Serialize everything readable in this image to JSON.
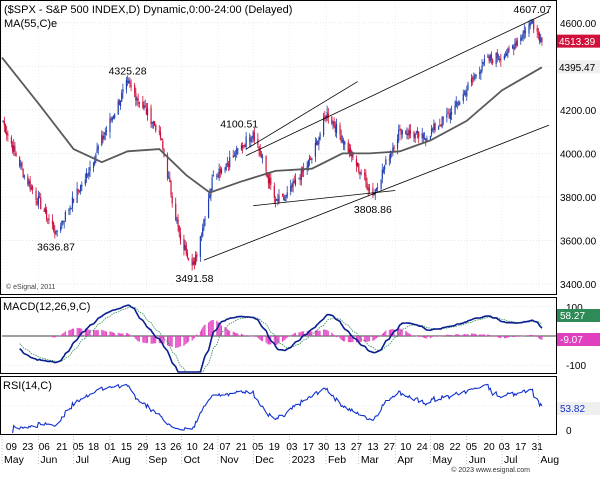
{
  "chart_data": {
    "type": "candlestick",
    "title": "($SPX - S&P 500 INDEX,D) Dynamic,0:00-24:00 (Delayed)",
    "ma_label": "MA(55,C)e",
    "watermark": "© eSignal, 2011",
    "footer_credit": "© 2023 www.esignal.com",
    "price_axis": {
      "ylim": [
        3350,
        4700
      ],
      "ticks": [
        "4600.00",
        "4400.00",
        "4200.00",
        "4000.00",
        "3800.00",
        "3600.00",
        "3400.00"
      ],
      "tick_values": [
        4600,
        4400,
        4200,
        4000,
        3800,
        3600,
        3400
      ],
      "last_price": "4513.39",
      "ma_last": "4395.47"
    },
    "colors": {
      "up": "#1f3fb0",
      "down": "#d0103a",
      "ma": "#5a5a5a",
      "last_label_bg": "#d0103a",
      "macd": "#0a1f8f",
      "signal": "#2e8b57",
      "hist": "#e040c0",
      "rsi": "#1030d0"
    },
    "anchors": [
      {
        "date": "2022-05-01",
        "close": 4150
      },
      {
        "date": "2022-05-20",
        "close": 3900
      },
      {
        "date": "2022-06-16",
        "close": 3636.87
      },
      {
        "date": "2022-07-10",
        "close": 3880
      },
      {
        "date": "2022-08-16",
        "close": 4325.28
      },
      {
        "date": "2022-09-12",
        "close": 4100
      },
      {
        "date": "2022-09-30",
        "close": 3600
      },
      {
        "date": "2022-10-12",
        "close": 3491.58
      },
      {
        "date": "2022-10-28",
        "close": 3900
      },
      {
        "date": "2022-11-15",
        "close": 3990
      },
      {
        "date": "2022-12-01",
        "close": 4100.51
      },
      {
        "date": "2022-12-20",
        "close": 3780
      },
      {
        "date": "2022-12-28",
        "close": 3790
      },
      {
        "date": "2023-01-20",
        "close": 3980
      },
      {
        "date": "2023-02-02",
        "close": 4190
      },
      {
        "date": "2023-02-24",
        "close": 3980
      },
      {
        "date": "2023-03-13",
        "close": 3808.86
      },
      {
        "date": "2023-04-05",
        "close": 4110
      },
      {
        "date": "2023-04-25",
        "close": 4070
      },
      {
        "date": "2023-05-20",
        "close": 4190
      },
      {
        "date": "2023-06-15",
        "close": 4420
      },
      {
        "date": "2023-07-05",
        "close": 4460
      },
      {
        "date": "2023-07-27",
        "close": 4607.07
      },
      {
        "date": "2023-08-04",
        "close": 4513.39
      }
    ],
    "ma_points": [
      {
        "date": "2022-05-01",
        "value": 4440
      },
      {
        "date": "2022-06-01",
        "value": 4230
      },
      {
        "date": "2022-07-01",
        "value": 4020
      },
      {
        "date": "2022-07-25",
        "value": 3960
      },
      {
        "date": "2022-08-16",
        "value": 4010
      },
      {
        "date": "2022-09-12",
        "value": 4020
      },
      {
        "date": "2022-10-05",
        "value": 3900
      },
      {
        "date": "2022-10-25",
        "value": 3820
      },
      {
        "date": "2022-11-20",
        "value": 3870
      },
      {
        "date": "2022-12-20",
        "value": 3920
      },
      {
        "date": "2023-01-20",
        "value": 3930
      },
      {
        "date": "2023-02-15",
        "value": 4000
      },
      {
        "date": "2023-03-10",
        "value": 4000
      },
      {
        "date": "2023-04-05",
        "value": 4010
      },
      {
        "date": "2023-05-01",
        "value": 4060
      },
      {
        "date": "2023-06-01",
        "value": 4150
      },
      {
        "date": "2023-07-01",
        "value": 4290
      },
      {
        "date": "2023-08-04",
        "value": 4395.47
      }
    ],
    "annotations": [
      {
        "label": "4607.07",
        "date": "2023-07-27",
        "value": 4607.07,
        "pos": "above"
      },
      {
        "label": "4325.28",
        "date": "2022-08-16",
        "value": 4325.28,
        "pos": "above"
      },
      {
        "label": "4100.51",
        "date": "2022-12-01",
        "value": 4100.51,
        "pos": "above-left"
      },
      {
        "label": "3636.87",
        "date": "2022-06-16",
        "value": 3636.87,
        "pos": "below"
      },
      {
        "label": "3491.58",
        "date": "2022-10-12",
        "value": 3491.58,
        "pos": "below"
      },
      {
        "label": "3808.86",
        "date": "2023-03-13",
        "value": 3808.86,
        "pos": "below"
      }
    ],
    "trendlines": [
      {
        "from": {
          "date": "2022-11-25",
          "value": 3990
        },
        "to": {
          "date": "2023-08-10",
          "value": 4650
        }
      },
      {
        "from": {
          "date": "2022-10-20",
          "value": 3510
        },
        "to": {
          "date": "2023-08-10",
          "value": 4130
        }
      },
      {
        "from": {
          "date": "2022-11-25",
          "value": 4020
        },
        "to": {
          "date": "2023-02-28",
          "value": 4330
        }
      },
      {
        "from": {
          "date": "2022-12-01",
          "value": 3760
        },
        "to": {
          "date": "2023-04-01",
          "value": 3830
        }
      }
    ],
    "macd": {
      "label": "MACD(12,26,9,C)",
      "ylim": [
        -130,
        130
      ],
      "tick_labels": [
        "100",
        "-100"
      ],
      "tick_values": [
        100,
        -100
      ],
      "macd_last": "58.27",
      "signal_last": "-9.07"
    },
    "rsi": {
      "label": "RSI(14,C)",
      "ylim": [
        0,
        100
      ],
      "tick_labels": [
        "0"
      ],
      "tick_values": [
        0
      ],
      "last": "53.82"
    },
    "x_axis": {
      "start": "2022-05-01",
      "end": "2023-08-16",
      "day_ticks": [
        {
          "label": "09",
          "date": "2022-05-09"
        },
        {
          "label": "23",
          "date": "2022-05-23"
        },
        {
          "label": "06",
          "date": "2022-06-06"
        },
        {
          "label": "21",
          "date": "2022-06-21"
        },
        {
          "label": "05",
          "date": "2022-07-05"
        },
        {
          "label": "18",
          "date": "2022-07-18"
        },
        {
          "label": "01",
          "date": "2022-08-01"
        },
        {
          "label": "15",
          "date": "2022-08-15"
        },
        {
          "label": "29",
          "date": "2022-08-29"
        },
        {
          "label": "13",
          "date": "2022-09-13"
        },
        {
          "label": "26",
          "date": "2022-09-26"
        },
        {
          "label": "10",
          "date": "2022-10-10"
        },
        {
          "label": "24",
          "date": "2022-10-24"
        },
        {
          "label": "07",
          "date": "2022-11-07"
        },
        {
          "label": "21",
          "date": "2022-11-21"
        },
        {
          "label": "05",
          "date": "2022-12-05"
        },
        {
          "label": "19",
          "date": "2022-12-19"
        },
        {
          "label": "03",
          "date": "2023-01-03"
        },
        {
          "label": "17",
          "date": "2023-01-17"
        },
        {
          "label": "30",
          "date": "2023-01-30"
        },
        {
          "label": "13",
          "date": "2023-02-13"
        },
        {
          "label": "27",
          "date": "2023-02-27"
        },
        {
          "label": "13",
          "date": "2023-03-13"
        },
        {
          "label": "27",
          "date": "2023-03-27"
        },
        {
          "label": "10",
          "date": "2023-04-10"
        },
        {
          "label": "24",
          "date": "2023-04-24"
        },
        {
          "label": "08",
          "date": "2023-05-08"
        },
        {
          "label": "22",
          "date": "2023-05-22"
        },
        {
          "label": "05",
          "date": "2023-06-05"
        },
        {
          "label": "20",
          "date": "2023-06-20"
        },
        {
          "label": "03",
          "date": "2023-07-03"
        },
        {
          "label": "17",
          "date": "2023-07-17"
        },
        {
          "label": "31",
          "date": "2023-07-31"
        }
      ],
      "month_ticks": [
        {
          "label": "May",
          "date": "2022-05-01"
        },
        {
          "label": "Jun",
          "date": "2022-06-01"
        },
        {
          "label": "Jul",
          "date": "2022-07-01"
        },
        {
          "label": "Aug",
          "date": "2022-08-01"
        },
        {
          "label": "Sep",
          "date": "2022-09-01"
        },
        {
          "label": "Oct",
          "date": "2022-10-01"
        },
        {
          "label": "Nov",
          "date": "2022-11-01"
        },
        {
          "label": "Dec",
          "date": "2022-12-01"
        },
        {
          "label": "2023",
          "date": "2023-01-01"
        },
        {
          "label": "Feb",
          "date": "2023-02-01"
        },
        {
          "label": "Mar",
          "date": "2023-03-01"
        },
        {
          "label": "Apr",
          "date": "2023-04-01"
        },
        {
          "label": "May",
          "date": "2023-05-01"
        },
        {
          "label": "Jun",
          "date": "2023-06-01"
        },
        {
          "label": "Jul",
          "date": "2023-07-01"
        },
        {
          "label": "Aug",
          "date": "2023-08-01"
        }
      ]
    }
  }
}
